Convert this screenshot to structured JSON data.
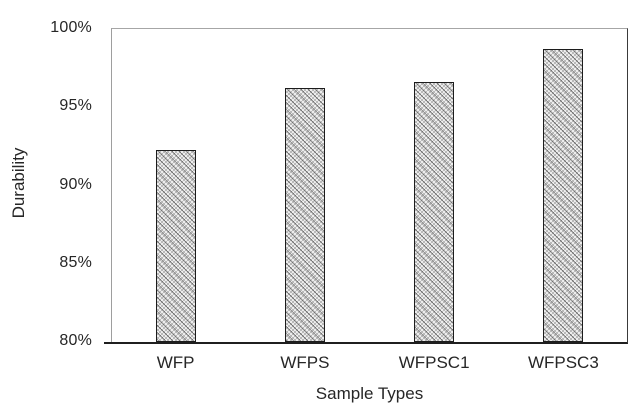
{
  "chart_data": {
    "type": "bar",
    "title": "",
    "xlabel": "Sample Types",
    "ylabel": "Durability",
    "categories": [
      "WFP",
      "WFPS",
      "WFPSC1",
      "WFPSC3"
    ],
    "values": [
      92.3,
      96.2,
      96.6,
      98.7
    ],
    "value_unit": "%",
    "ylim": [
      80,
      100
    ],
    "ytick_labels": [
      "100%",
      "95%",
      "90%",
      "85%",
      "80%"
    ],
    "grid": "off",
    "legend": "none",
    "bar_style": "light gray dotted diagonal pattern fill with black outline",
    "colors": {
      "background": "#ffffff",
      "bar_base": "#ededed",
      "bar_pattern": "#5a5a5a",
      "bar_border": "#1c1c1c",
      "axis_light": "#a6a6a6",
      "axis_dark": "#1f1f1f",
      "text": "#262626"
    }
  }
}
